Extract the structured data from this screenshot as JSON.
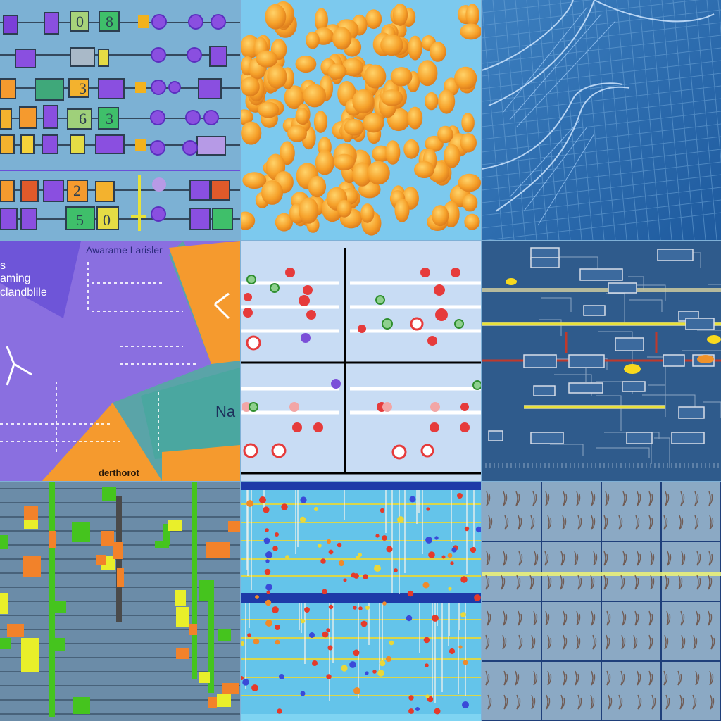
{
  "tile4": {
    "title": "Awarame Larisler",
    "left_text_1": "s",
    "left_text_2": "aming",
    "left_text_3": "clandblile",
    "right_text": "Na",
    "bottom_text": "derthorot"
  },
  "colors": {
    "purple": "#7b4fd8",
    "orange": "#f59a2e",
    "teal": "#4aa7a0",
    "green": "#2fd23a",
    "yellow": "#f4e22a",
    "red": "#e53a2a"
  }
}
